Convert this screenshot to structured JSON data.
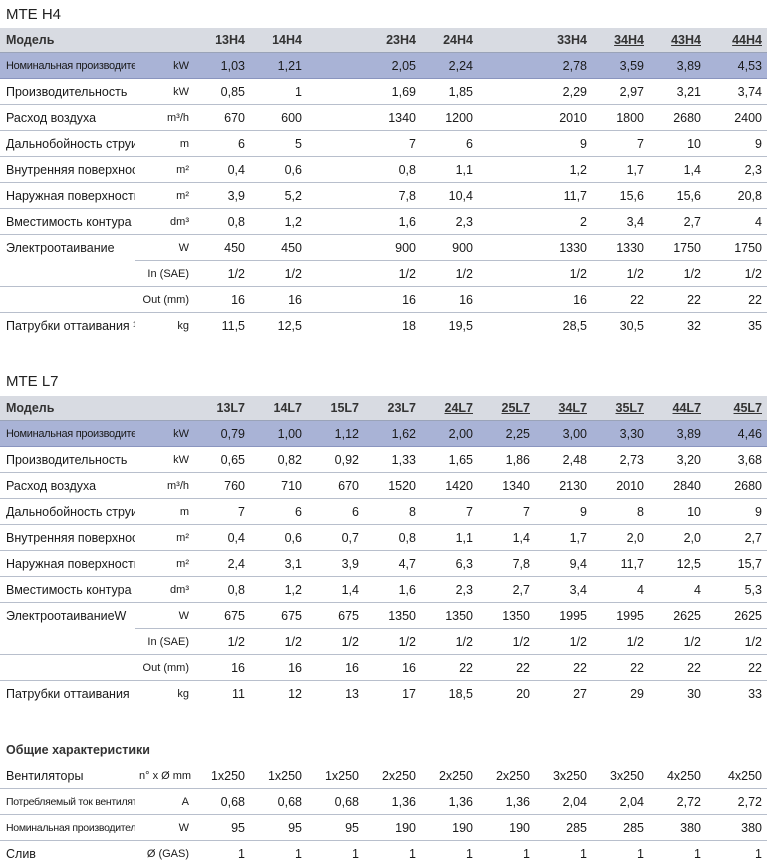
{
  "h4": {
    "title": "MTE H4",
    "header": {
      "label": "Модель",
      "models": [
        "13H4",
        "14H4",
        "",
        "23H4",
        "24H4",
        "",
        "33H4",
        "34H4",
        "43H4",
        "44H4"
      ],
      "underlined": [
        false,
        false,
        false,
        false,
        false,
        false,
        false,
        true,
        true,
        true
      ]
    },
    "rows": [
      {
        "label": "Номинальная производительность",
        "unit": "kW",
        "values": [
          "1,03",
          "1,21",
          "",
          "2,05",
          "2,24",
          "",
          "2,78",
          "3,59",
          "3,89",
          "4,53"
        ],
        "style": "nom"
      },
      {
        "label": "Производительность",
        "unit": "kW",
        "values": [
          "0,85",
          "1",
          "",
          "1,69",
          "1,85",
          "",
          "2,29",
          "2,97",
          "3,21",
          "3,74"
        ]
      },
      {
        "label": "Расход воздуха",
        "unit": "m³/h",
        "values": [
          "670",
          "600",
          "",
          "1340",
          "1200",
          "",
          "2010",
          "1800",
          "2680",
          "2400"
        ]
      },
      {
        "label": "Дальнобойность струи",
        "unit": "m",
        "values": [
          "6",
          "5",
          "",
          "7",
          "6",
          "",
          "9",
          "7",
          "10",
          "9"
        ]
      },
      {
        "label": "Внутренняя поверхность",
        "unit": "m²",
        "values": [
          "0,4",
          "0,6",
          "",
          "0,8",
          "1,1",
          "",
          "1,2",
          "1,7",
          "1,4",
          "2,3"
        ]
      },
      {
        "label": "Наружная поверхность",
        "unit": "m²",
        "values": [
          "3,9",
          "5,2",
          "",
          "7,8",
          "10,4",
          "",
          "11,7",
          "15,6",
          "15,6",
          "20,8"
        ]
      },
      {
        "label": "Вместимость контура",
        "unit": "dm³",
        "values": [
          "0,8",
          "1,2",
          "",
          "1,6",
          "2,3",
          "",
          "2",
          "3,4",
          "2,7",
          "4"
        ]
      },
      {
        "label": "Электроотаивание",
        "unit": "W",
        "values": [
          "450",
          "450",
          "",
          "900",
          "900",
          "",
          "1330",
          "1330",
          "1750",
          "1750"
        ],
        "nobottom": true
      },
      {
        "label": "",
        "unit": "In (SAE)",
        "values": [
          "1/2",
          "1/2",
          "",
          "1/2",
          "1/2",
          "",
          "1/2",
          "1/2",
          "1/2",
          "1/2"
        ]
      },
      {
        "label": "",
        "unit": "Out (mm)",
        "values": [
          "16",
          "16",
          "",
          "16",
          "16",
          "",
          "16",
          "22",
          "22",
          "22"
        ]
      },
      {
        "label": "Патрубки оттаивания ¹",
        "unit": "kg",
        "values": [
          "11,5",
          "12,5",
          "",
          "18",
          "19,5",
          "",
          "28,5",
          "30,5",
          "32",
          "35"
        ],
        "noline": true
      }
    ]
  },
  "l7": {
    "title": "MTE L7",
    "header": {
      "label": "Модель",
      "models": [
        "13L7",
        "14L7",
        "15L7",
        "23L7",
        "24L7",
        "25L7",
        "34L7",
        "35L7",
        "44L7",
        "45L7"
      ],
      "underlined": [
        false,
        false,
        false,
        false,
        true,
        true,
        true,
        true,
        true,
        true
      ]
    },
    "rows": [
      {
        "label": "Номинальная производительность",
        "unit": "kW",
        "values": [
          "0,79",
          "1,00",
          "1,12",
          "1,62",
          "2,00",
          "2,25",
          "3,00",
          "3,30",
          "3,89",
          "4,46"
        ],
        "style": "nom"
      },
      {
        "label": "Производительность",
        "unit": "kW",
        "values": [
          "0,65",
          "0,82",
          "0,92",
          "1,33",
          "1,65",
          "1,86",
          "2,48",
          "2,73",
          "3,20",
          "3,68"
        ]
      },
      {
        "label": "Расход воздуха",
        "unit": "m³/h",
        "values": [
          "760",
          "710",
          "670",
          "1520",
          "1420",
          "1340",
          "2130",
          "2010",
          "2840",
          "2680"
        ]
      },
      {
        "label": "Дальнобойность струи",
        "unit": "m",
        "values": [
          "7",
          "6",
          "6",
          "8",
          "7",
          "7",
          "9",
          "8",
          "10",
          "9"
        ]
      },
      {
        "label": "Внутренняя поверхность",
        "unit": "m²",
        "values": [
          "0,4",
          "0,6",
          "0,7",
          "0,8",
          "1,1",
          "1,4",
          "1,7",
          "2,0",
          "2,0",
          "2,7"
        ]
      },
      {
        "label": "Наружная поверхность",
        "unit": "m²",
        "values": [
          "2,4",
          "3,1",
          "3,9",
          "4,7",
          "6,3",
          "7,8",
          "9,4",
          "11,7",
          "12,5",
          "15,7"
        ]
      },
      {
        "label": "Вместимость контура",
        "unit": "dm³",
        "values": [
          "0,8",
          "1,2",
          "1,4",
          "1,6",
          "2,3",
          "2,7",
          "3,4",
          "4",
          "4",
          "5,3"
        ]
      },
      {
        "label": "ЭлектроотаиваниеW",
        "unit": "W",
        "values": [
          "675",
          "675",
          "675",
          "1350",
          "1350",
          "1350",
          "1995",
          "1995",
          "2625",
          "2625"
        ],
        "nobottom": true
      },
      {
        "label": "",
        "unit": "In (SAE)",
        "values": [
          "1/2",
          "1/2",
          "1/2",
          "1/2",
          "1/2",
          "1/2",
          "1/2",
          "1/2",
          "1/2",
          "1/2"
        ]
      },
      {
        "label": "",
        "unit": "Out (mm)",
        "values": [
          "16",
          "16",
          "16",
          "16",
          "22",
          "22",
          "22",
          "22",
          "22",
          "22"
        ]
      },
      {
        "label": "Патрубки оттаивания",
        "unit": "kg",
        "values": [
          "11",
          "12",
          "13",
          "17",
          "18,5",
          "20",
          "27",
          "29",
          "30",
          "33"
        ],
        "noline": true
      }
    ]
  },
  "general": {
    "title": "Общие характеристики",
    "rows": [
      {
        "label": "Вентиляторы",
        "unit": "n° x Ø mm",
        "values": [
          "1x250",
          "1x250",
          "1x250",
          "2x250",
          "2x250",
          "2x250",
          "3x250",
          "3x250",
          "4x250",
          "4x250"
        ]
      },
      {
        "label": "Потребляемый ток вентиляторов",
        "unit": "A",
        "values": [
          "0,68",
          "0,68",
          "0,68",
          "1,36",
          "1,36",
          "1,36",
          "2,04",
          "2,04",
          "2,72",
          "2,72"
        ],
        "small": true
      },
      {
        "label": "Номинальная производительность",
        "unit": "W",
        "values": [
          "95",
          "95",
          "95",
          "190",
          "190",
          "190",
          "285",
          "285",
          "380",
          "380"
        ],
        "small": true
      },
      {
        "label": "Слив",
        "unit": "Ø (GAS)",
        "values": [
          "1",
          "1",
          "1",
          "1",
          "1",
          "1",
          "1",
          "1",
          "1",
          "1"
        ],
        "noline": true
      }
    ]
  },
  "colors": {
    "header_bg": "#d8dbe2",
    "nominal_bg": "#a9b3d6",
    "rule": "#b8bfcc"
  }
}
